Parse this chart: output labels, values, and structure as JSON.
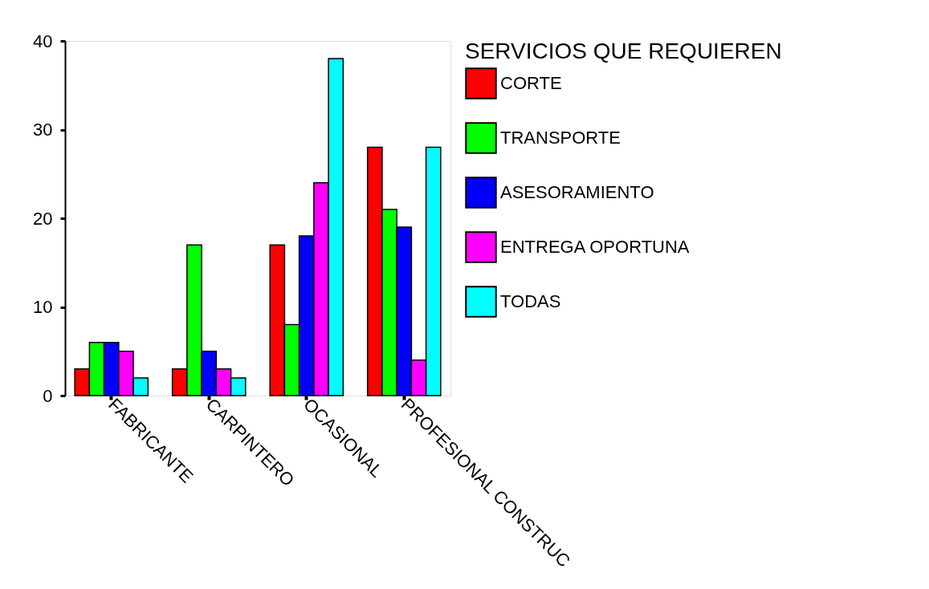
{
  "chart_data": {
    "type": "bar",
    "legend_title": "SERVICIOS QUE REQUIEREN",
    "categories": [
      "FABRICANTE",
      "CARPINTERO",
      "OCASIONAL",
      "PROFESIONAL CONSTRUC"
    ],
    "series": [
      {
        "name": "CORTE",
        "color": "#ff0000",
        "values": [
          3,
          3,
          17,
          28
        ]
      },
      {
        "name": "TRANSPORTE",
        "color": "#00ff00",
        "values": [
          6,
          17,
          8,
          21
        ]
      },
      {
        "name": "ASESORAMIENTO",
        "color": "#0000ff",
        "values": [
          6,
          5,
          18,
          19
        ]
      },
      {
        "name": "ENTREGA OPORTUNA",
        "color": "#ff00ff",
        "values": [
          5,
          3,
          24,
          4
        ]
      },
      {
        "name": "TODAS",
        "color": "#00ffff",
        "values": [
          2,
          2,
          38,
          28
        ]
      }
    ],
    "ylim": [
      0,
      40
    ],
    "yticks": [
      0,
      10,
      20,
      30,
      40
    ],
    "grid": false,
    "legend": "right"
  }
}
